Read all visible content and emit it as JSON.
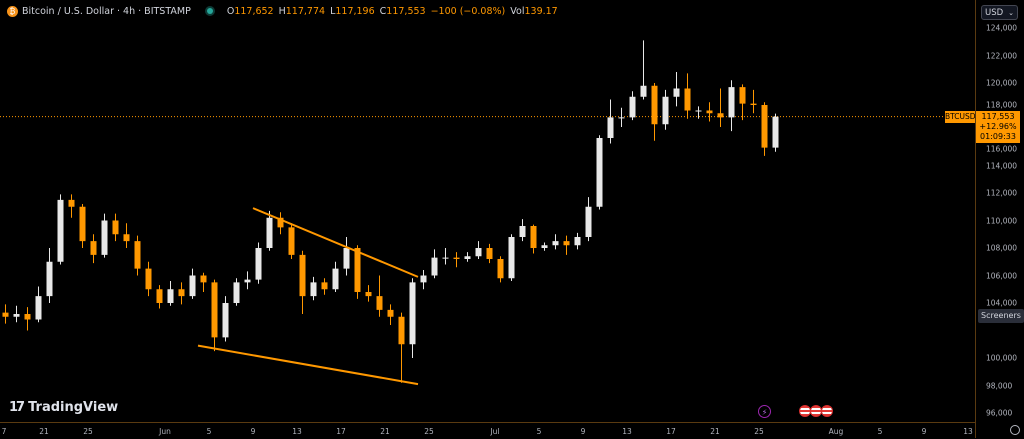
{
  "header": {
    "symbol_title": "Bitcoin / U.S. Dollar · 4h · BITSTAMP",
    "icon": "bitcoin-icon",
    "status_color": "#26a69a",
    "open_label": "O",
    "open": "117,652",
    "high_label": "H",
    "high": "117,774",
    "low_label": "L",
    "low": "117,196",
    "close_label": "C",
    "close": "117,553",
    "change": "−100 (−0.08%)",
    "vol_label": "Vol",
    "vol": "139.17"
  },
  "price_axis": {
    "currency": "USD",
    "symbol_tag": "BTCUSD",
    "last_price": "117,553",
    "change_pct": "+12.96%",
    "countdown": "01:09:33",
    "screeners_label": "Screeners"
  },
  "branding": {
    "logo_text": "TradingView"
  },
  "colors": {
    "background": "#000000",
    "up": "#e8e8e8",
    "down": "#ff9800",
    "trendline": "#ff9800",
    "price_line": "#ff9800"
  },
  "chart_data": {
    "type": "candlestick",
    "title": "Bitcoin / U.S. Dollar · 4h · BITSTAMP",
    "ylim": [
      95000,
      125000
    ],
    "y_ticks": [
      124000,
      122000,
      120000,
      118000,
      116000,
      114000,
      112000,
      110000,
      108000,
      106000,
      104000,
      100000,
      98000,
      96000
    ],
    "y_tick_labels": [
      "124,000",
      "122,000",
      "120,000",
      "118,000",
      "116,000",
      "114,000",
      "112,000",
      "110,000",
      "108,000",
      "106,000",
      "104,000",
      "100,000",
      "98,000",
      "96,000"
    ],
    "x_ticks": [
      {
        "label": "7",
        "date": "May 17"
      },
      {
        "label": "21",
        "date": "May 21"
      },
      {
        "label": "25",
        "date": "May 25"
      },
      {
        "label": "Jun",
        "date": "Jun 1"
      },
      {
        "label": "5",
        "date": "Jun 5"
      },
      {
        "label": "9",
        "date": "Jun 9"
      },
      {
        "label": "13",
        "date": "Jun 13"
      },
      {
        "label": "17",
        "date": "Jun 17"
      },
      {
        "label": "21",
        "date": "Jun 21"
      },
      {
        "label": "25",
        "date": "Jun 25"
      },
      {
        "label": "Jul",
        "date": "Jul 1"
      },
      {
        "label": "5",
        "date": "Jul 5"
      },
      {
        "label": "9",
        "date": "Jul 9"
      },
      {
        "label": "13",
        "date": "Jul 13"
      },
      {
        "label": "17",
        "date": "Jul 17"
      },
      {
        "label": "21",
        "date": "Jul 21"
      },
      {
        "label": "25",
        "date": "Jul 25"
      },
      {
        "label": "Aug",
        "date": "Aug 1"
      },
      {
        "label": "5",
        "date": "Aug 5"
      },
      {
        "label": "9",
        "date": "Aug 9"
      },
      {
        "label": "13",
        "date": "Aug 13"
      }
    ],
    "candles_columns": [
      "date",
      "open",
      "high",
      "low",
      "close"
    ],
    "candles": [
      [
        "May 17",
        103300,
        103900,
        102500,
        103000
      ],
      [
        "May 18",
        103000,
        103800,
        102600,
        103200
      ],
      [
        "May 19",
        103200,
        103700,
        102000,
        102800
      ],
      [
        "May 20",
        102800,
        105200,
        102600,
        104500
      ],
      [
        "May 21",
        104500,
        108000,
        104000,
        107000
      ],
      [
        "May 22",
        107000,
        111900,
        106800,
        111500
      ],
      [
        "May 23",
        111500,
        111900,
        110200,
        111000
      ],
      [
        "May 24",
        111000,
        111200,
        108000,
        108500
      ],
      [
        "May 25",
        108500,
        109000,
        106900,
        107500
      ],
      [
        "May 26",
        107500,
        110500,
        107300,
        110000
      ],
      [
        "May 27",
        110000,
        110500,
        108500,
        109000
      ],
      [
        "May 28",
        109000,
        109800,
        108000,
        108500
      ],
      [
        "May 29",
        108500,
        108900,
        106000,
        106500
      ],
      [
        "May 30",
        106500,
        107000,
        104500,
        105000
      ],
      [
        "May 31",
        105000,
        105300,
        103600,
        104000
      ],
      [
        "Jun 1",
        104000,
        105600,
        103800,
        105000
      ],
      [
        "Jun 2",
        105000,
        105500,
        103900,
        104500
      ],
      [
        "Jun 3",
        104500,
        106500,
        104300,
        106000
      ],
      [
        "Jun 4",
        106000,
        106200,
        104800,
        105500
      ],
      [
        "Jun 5",
        105500,
        105700,
        100500,
        101500
      ],
      [
        "Jun 6",
        101500,
        104500,
        101200,
        104000
      ],
      [
        "Jun 7",
        104000,
        105800,
        103800,
        105500
      ],
      [
        "Jun 8",
        105500,
        106300,
        105000,
        105700
      ],
      [
        "Jun 9",
        105700,
        108400,
        105400,
        108000
      ],
      [
        "Jun 10",
        108000,
        110700,
        107800,
        110200
      ],
      [
        "Jun 11",
        110200,
        110600,
        109000,
        109500
      ],
      [
        "Jun 12",
        109500,
        109800,
        107200,
        107500
      ],
      [
        "Jun 13",
        107500,
        107800,
        103200,
        104500
      ],
      [
        "Jun 14",
        104500,
        105900,
        104200,
        105500
      ],
      [
        "Jun 15",
        105500,
        105800,
        104600,
        105000
      ],
      [
        "Jun 16",
        105000,
        107000,
        104800,
        106500
      ],
      [
        "Jun 17",
        106500,
        108800,
        106000,
        108000
      ],
      [
        "Jun 18",
        108000,
        108200,
        104300,
        104800
      ],
      [
        "Jun 19",
        104800,
        105300,
        104100,
        104500
      ],
      [
        "Jun 20",
        104500,
        106000,
        103000,
        103500
      ],
      [
        "Jun 21",
        103500,
        103900,
        102400,
        103000
      ],
      [
        "Jun 22",
        103000,
        103300,
        98200,
        101000
      ],
      [
        "Jun 23",
        101000,
        105800,
        100000,
        105500
      ],
      [
        "Jun 24",
        105500,
        106400,
        105000,
        106000
      ],
      [
        "Jun 25",
        106000,
        107900,
        105800,
        107300
      ],
      [
        "Jun 26",
        107300,
        108000,
        106800,
        107300
      ],
      [
        "Jun 27",
        107300,
        107700,
        106600,
        107200
      ],
      [
        "Jun 28",
        107200,
        107700,
        107000,
        107400
      ],
      [
        "Jun 29",
        107400,
        108500,
        107200,
        108000
      ],
      [
        "Jun 30",
        108000,
        108300,
        106900,
        107200
      ],
      [
        "Jul 1",
        107200,
        107400,
        105500,
        105800
      ],
      [
        "Jul 2",
        105800,
        109000,
        105600,
        108800
      ],
      [
        "Jul 3",
        108800,
        110100,
        108500,
        109600
      ],
      [
        "Jul 4",
        109600,
        109700,
        107600,
        108000
      ],
      [
        "Jul 5",
        108000,
        108400,
        107800,
        108200
      ],
      [
        "Jul 6",
        108200,
        109000,
        107900,
        108500
      ],
      [
        "Jul 7",
        108500,
        108900,
        107500,
        108200
      ],
      [
        "Jul 8",
        108200,
        109100,
        107900,
        108800
      ],
      [
        "Jul 9",
        108800,
        111700,
        108500,
        111000
      ],
      [
        "Jul 10",
        111000,
        116200,
        110800,
        116000
      ],
      [
        "Jul 11",
        116000,
        118800,
        115600,
        117500
      ],
      [
        "Jul 12",
        117500,
        118200,
        116800,
        117500
      ],
      [
        "Jul 13",
        117500,
        119400,
        117300,
        119000
      ],
      [
        "Jul 14",
        119000,
        123100,
        118800,
        119800
      ],
      [
        "Jul 15",
        119800,
        120000,
        115800,
        117000
      ],
      [
        "Jul 16",
        117000,
        119500,
        116600,
        119000
      ],
      [
        "Jul 17",
        119000,
        120800,
        118300,
        119600
      ],
      [
        "Jul 18",
        119600,
        120700,
        117400,
        118000
      ],
      [
        "Jul 19",
        118000,
        118300,
        117400,
        118000
      ],
      [
        "Jul 20",
        118000,
        118600,
        117200,
        117800
      ],
      [
        "Jul 21",
        117800,
        119600,
        116800,
        117500
      ],
      [
        "Jul 22",
        117500,
        120200,
        116500,
        119700
      ],
      [
        "Jul 23",
        119700,
        119900,
        117300,
        118500
      ],
      [
        "Jul 24",
        118500,
        119500,
        117800,
        118400
      ],
      [
        "Jul 25",
        118400,
        118600,
        114700,
        115300
      ],
      [
        "Jul 26",
        115300,
        117774,
        115000,
        117553
      ]
    ],
    "last_price": 117553,
    "trendlines": [
      {
        "from": {
          "date": "Jun 9",
          "price": 110900
        },
        "to": {
          "date": "Jun 24",
          "price": 105900
        }
      },
      {
        "from": {
          "date": "Jun 4",
          "price": 100900
        },
        "to": {
          "date": "Jun 24",
          "price": 98100
        }
      }
    ],
    "grid": false
  },
  "events": {
    "icons": [
      "lightning-icon",
      "us-flag-icon",
      "us-flag-icon",
      "us-flag-icon"
    ]
  }
}
